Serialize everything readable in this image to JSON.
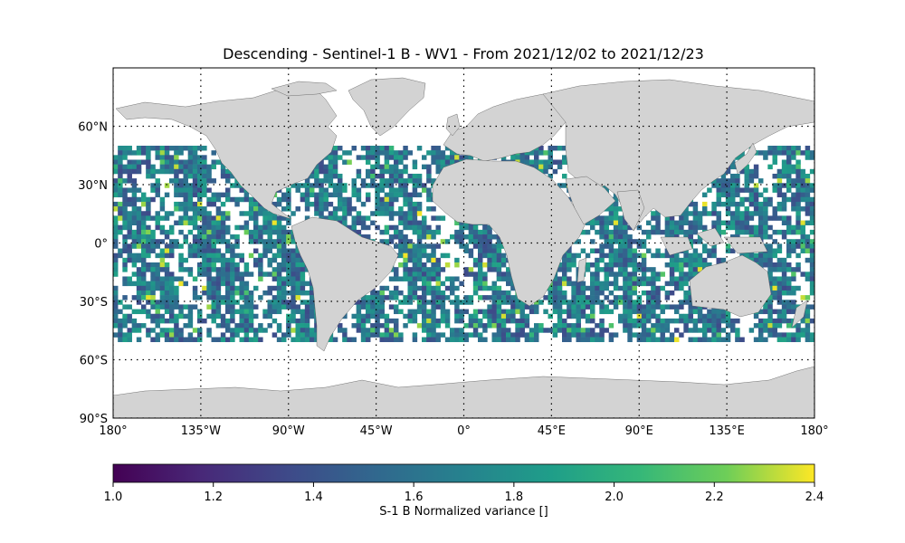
{
  "title": "Descending - Sentinel-1 B - WV1 - From 2021/12/02 to 2021/12/23",
  "map": {
    "lon_range": [
      -180,
      180
    ],
    "lat_range": [
      -90,
      90
    ],
    "lon_ticks": [
      {
        "value": -180,
        "label": "180°"
      },
      {
        "value": -135,
        "label": "135°W"
      },
      {
        "value": -90,
        "label": "90°W"
      },
      {
        "value": -45,
        "label": "45°W"
      },
      {
        "value": 0,
        "label": "0°"
      },
      {
        "value": 45,
        "label": "45°E"
      },
      {
        "value": 90,
        "label": "90°E"
      },
      {
        "value": 135,
        "label": "135°E"
      },
      {
        "value": 180,
        "label": "180°"
      }
    ],
    "lat_ticks": [
      {
        "value": 60,
        "label": "60°N"
      },
      {
        "value": 30,
        "label": "30°N"
      },
      {
        "value": 0,
        "label": "0°"
      },
      {
        "value": -30,
        "label": "30°S"
      },
      {
        "value": -60,
        "label": "60°S"
      },
      {
        "value": -90,
        "label": "90°S"
      }
    ],
    "gridlines": "dotted",
    "land_color": "#d3d3d3",
    "data_lat_band": [
      -50,
      50
    ]
  },
  "colorbar": {
    "label": "S-1 B Normalized variance []",
    "vmin": 1.0,
    "vmax": 2.4,
    "ticks": [
      "1.0",
      "1.2",
      "1.4",
      "1.6",
      "1.8",
      "2.0",
      "2.2",
      "2.4"
    ],
    "colormap": "viridis"
  }
}
